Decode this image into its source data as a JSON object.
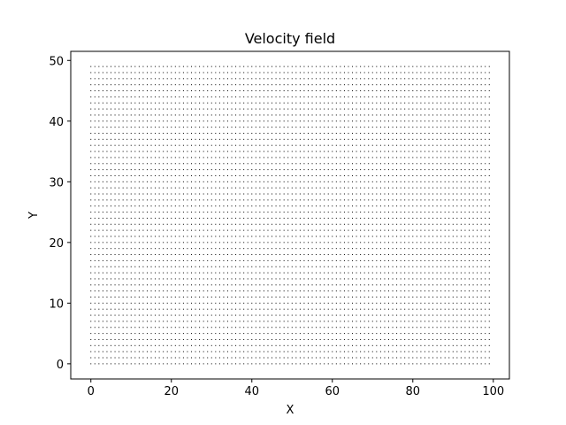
{
  "chart_data": {
    "type": "scatter",
    "title": "Velocity field",
    "xlabel": "X",
    "ylabel": "Y",
    "xlim": [
      -5,
      104
    ],
    "ylim": [
      -2.5,
      51.5
    ],
    "xticks": [
      0,
      20,
      40,
      60,
      80,
      100
    ],
    "yticks": [
      0,
      10,
      20,
      30,
      40,
      50
    ],
    "grid": false,
    "marker_color": "#000000",
    "points": {
      "x_start": 0,
      "x_end": 99,
      "x_step": 1,
      "y_start": 0,
      "y_end": 49,
      "y_step": 1
    }
  }
}
